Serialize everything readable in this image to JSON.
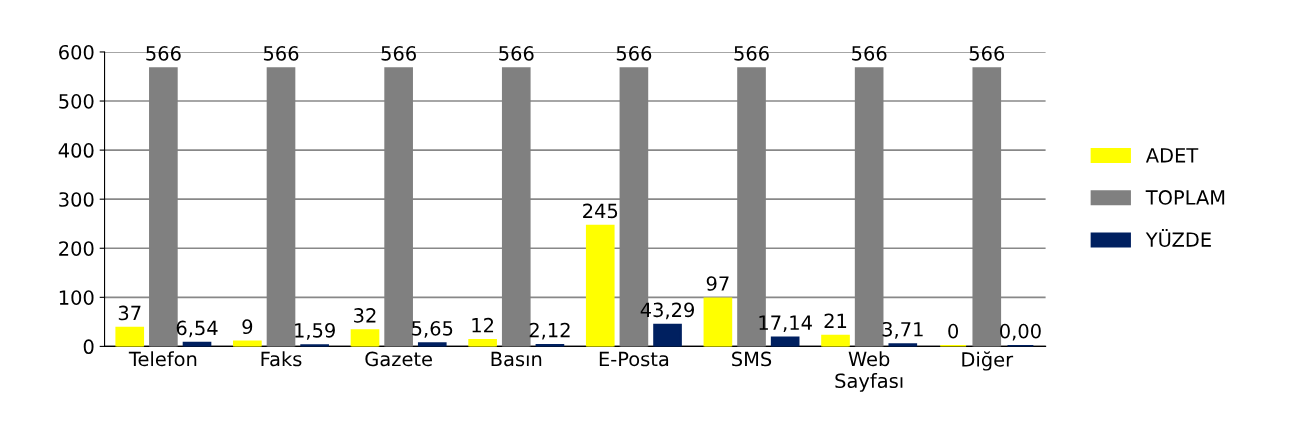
{
  "chart_data": {
    "type": "bar",
    "categories": [
      "Telefon",
      "Faks",
      "Gazete",
      "Basın",
      "E-Posta",
      "SMS",
      "Web\nSayfası",
      "Diğer"
    ],
    "series": [
      {
        "name": "ADET",
        "color": "#ffff00",
        "values": [
          37,
          9,
          32,
          12,
          245,
          97,
          21,
          0
        ],
        "value_labels": [
          "37",
          "9",
          "32",
          "12",
          "245",
          "97",
          "21",
          "0"
        ]
      },
      {
        "name": "TOPLAM",
        "color": "#808080",
        "values": [
          566,
          566,
          566,
          566,
          566,
          566,
          566,
          566
        ],
        "value_labels": [
          "566",
          "566",
          "566",
          "566",
          "566",
          "566",
          "566",
          "566"
        ]
      },
      {
        "name": "YÜZDE",
        "color": "#002060",
        "values": [
          6.54,
          1.59,
          5.65,
          2.12,
          43.29,
          17.14,
          3.71,
          0.0
        ],
        "value_labels": [
          "6,54",
          "1,59",
          "5,65",
          "2,12",
          "43,29",
          "17,14",
          "3,71",
          "0,00"
        ]
      }
    ],
    "ylim": [
      0,
      600
    ],
    "yticks": [
      0,
      100,
      200,
      300,
      400,
      500,
      600
    ],
    "grid": "y",
    "legend": "right"
  }
}
